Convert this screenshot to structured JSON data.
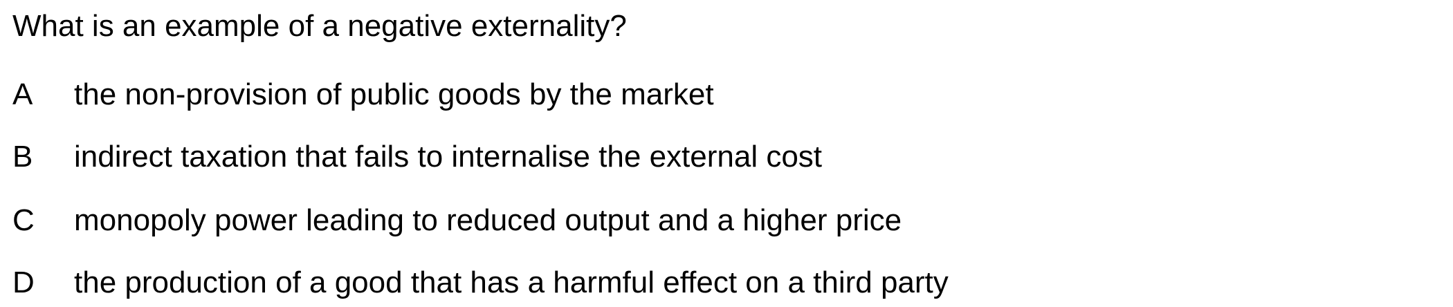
{
  "question": {
    "text": "What is an example of a negative externality?"
  },
  "options": [
    {
      "letter": "A",
      "text": "the non-provision of public goods by the market"
    },
    {
      "letter": "B",
      "text": "indirect taxation that fails to internalise the external cost"
    },
    {
      "letter": "C",
      "text": "monopoly power leading to reduced output and a higher price"
    },
    {
      "letter": "D",
      "text": "the production of a good that has a harmful effect on a third party"
    }
  ]
}
